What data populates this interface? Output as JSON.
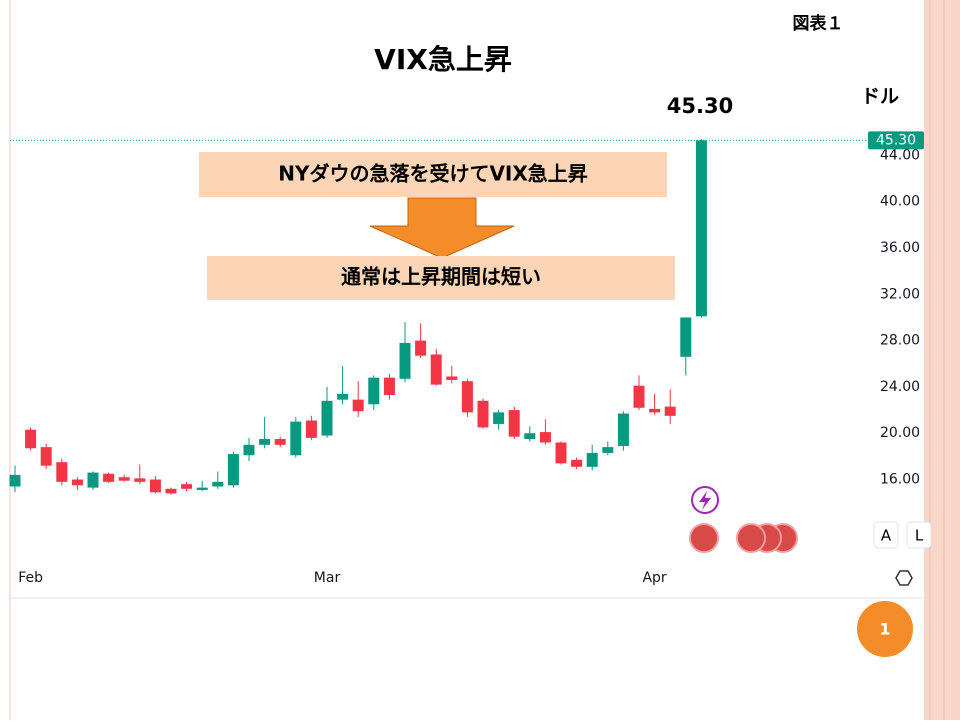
{
  "slide": {
    "figure_label": "図表１",
    "title": "VIX急上昇",
    "page_number": "1"
  },
  "chart_data": {
    "type": "candlestick",
    "unit": "ドル",
    "annotations": [
      "NYダウの急落を受けてVIX急上昇",
      "通常は上昇期間は短い"
    ],
    "price_label": {
      "value": 45.3,
      "label": "45.30"
    },
    "buttons": [
      "A",
      "L"
    ],
    "up_color": "#089981",
    "down_color": "#f23645",
    "categories": [
      null,
      "Feb",
      null,
      null,
      null,
      null,
      null,
      null,
      null,
      null,
      null,
      null,
      null,
      null,
      null,
      null,
      null,
      null,
      null,
      null,
      "Mar",
      null,
      null,
      null,
      null,
      null,
      null,
      null,
      null,
      null,
      null,
      null,
      null,
      null,
      null,
      null,
      null,
      null,
      null,
      null,
      null,
      "Apr",
      null,
      null,
      null
    ],
    "open": [
      15.4,
      20.3,
      18.8,
      17.5,
      16.0,
      15.3,
      16.5,
      16.2,
      16.1,
      16.0,
      15.2,
      15.6,
      15.1,
      15.4,
      15.5,
      18.1,
      19.0,
      19.5,
      18.1,
      21.1,
      19.8,
      22.9,
      22.9,
      22.5,
      24.8,
      24.7,
      28.0,
      26.8,
      24.9,
      24.5,
      22.8,
      20.8,
      22.0,
      19.5,
      20.1,
      19.2,
      17.7,
      17.1,
      18.3,
      18.9,
      24.1,
      22.1,
      22.3,
      26.6,
      30.1
    ],
    "high": [
      17.2,
      20.5,
      19.1,
      17.8,
      16.2,
      16.7,
      16.6,
      16.4,
      17.3,
      16.3,
      15.3,
      15.8,
      15.9,
      16.7,
      18.4,
      19.6,
      21.4,
      19.7,
      21.4,
      21.5,
      24.0,
      25.8,
      24.5,
      25.0,
      25.1,
      29.6,
      29.5,
      27.3,
      25.8,
      24.7,
      23.0,
      22.0,
      22.3,
      20.6,
      21.2,
      19.3,
      17.9,
      19.0,
      19.3,
      21.9,
      25.0,
      23.4,
      23.8,
      30.0,
      45.4
    ],
    "low": [
      14.9,
      18.5,
      16.9,
      15.5,
      15.1,
      15.1,
      15.7,
      15.8,
      15.6,
      14.8,
      14.7,
      15.0,
      15.0,
      15.2,
      15.3,
      17.6,
      18.7,
      18.8,
      17.9,
      19.4,
      19.6,
      22.5,
      21.4,
      22.0,
      22.9,
      24.4,
      26.5,
      24.1,
      24.3,
      21.4,
      20.4,
      20.3,
      19.5,
      19.3,
      19.0,
      17.3,
      16.9,
      16.8,
      18.1,
      18.5,
      22.0,
      21.6,
      20.8,
      25.0,
      30.0
    ],
    "close": [
      16.4,
      18.7,
      17.2,
      15.8,
      15.5,
      16.6,
      15.8,
      15.9,
      15.8,
      14.9,
      14.8,
      15.2,
      15.3,
      15.8,
      18.2,
      19.0,
      19.5,
      19.0,
      21.0,
      19.6,
      22.8,
      23.4,
      21.9,
      24.8,
      23.3,
      27.8,
      26.7,
      24.2,
      24.6,
      21.8,
      20.5,
      21.8,
      19.7,
      20.0,
      19.2,
      17.4,
      17.1,
      18.3,
      18.8,
      21.7,
      22.2,
      21.8,
      21.5,
      30.0,
      45.3
    ],
    "ylim": [
      10,
      45.5
    ],
    "yticks": [
      {
        "value": 16,
        "label": "16.00"
      },
      {
        "value": 20,
        "label": "20.00"
      },
      {
        "value": 24,
        "label": "24.00"
      },
      {
        "value": 28,
        "label": "28.00"
      },
      {
        "value": 32,
        "label": "32.00"
      },
      {
        "value": 36,
        "label": "36.00"
      },
      {
        "value": 40,
        "label": "40.00"
      },
      {
        "value": 44,
        "label": "44.00"
      }
    ]
  }
}
